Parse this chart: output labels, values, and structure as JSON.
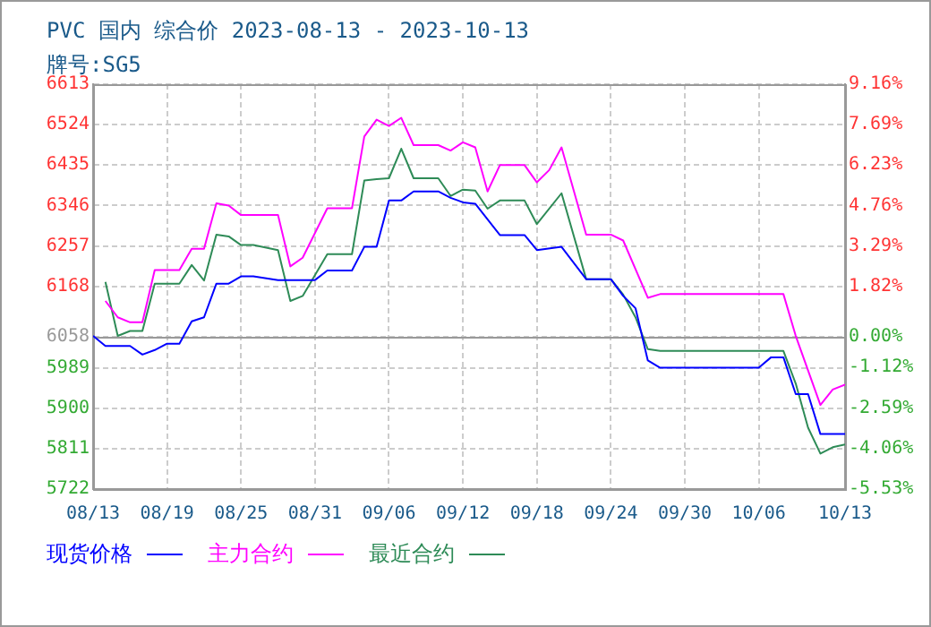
{
  "chart_data": {
    "type": "line",
    "title": "PVC 国内 综合价 2023-08-13 - 2023-10-13",
    "subtitle": "牌号:SG5",
    "xlim": [
      "2023-08-13",
      "2023-10-13"
    ],
    "xticks": [
      {
        "value": "2023-08-13",
        "label": "08/13"
      },
      {
        "value": "2023-08-19",
        "label": "08/19"
      },
      {
        "value": "2023-08-25",
        "label": "08/25"
      },
      {
        "value": "2023-08-31",
        "label": "08/31"
      },
      {
        "value": "2023-09-06",
        "label": "09/06"
      },
      {
        "value": "2023-09-12",
        "label": "09/12"
      },
      {
        "value": "2023-09-18",
        "label": "09/18"
      },
      {
        "value": "2023-09-24",
        "label": "09/24"
      },
      {
        "value": "2023-09-30",
        "label": "09/30"
      },
      {
        "value": "2023-10-06",
        "label": "10/06"
      },
      {
        "value": "2023-10-13",
        "label": "10/13"
      }
    ],
    "ylim": [
      5722,
      6613
    ],
    "yticks": [
      5722,
      5811,
      5900,
      5989,
      6058,
      6168,
      6257,
      6346,
      6435,
      6524,
      6613
    ],
    "y2lim": [
      -5.53,
      9.16
    ],
    "y2ticks": [
      {
        "value": -5.53,
        "label": "-5.53%"
      },
      {
        "value": -4.06,
        "label": "-4.06%"
      },
      {
        "value": -2.59,
        "label": "-2.59%"
      },
      {
        "value": -1.12,
        "label": "-1.12%"
      },
      {
        "value": 0,
        "label": "0.00%"
      },
      {
        "value": 1.82,
        "label": "1.82%"
      },
      {
        "value": 3.29,
        "label": "3.29%"
      },
      {
        "value": 4.76,
        "label": "4.76%"
      },
      {
        "value": 6.23,
        "label": "6.23%"
      },
      {
        "value": 7.69,
        "label": "7.69%"
      },
      {
        "value": 9.16,
        "label": "9.16%"
      }
    ],
    "ref_lines": [
      {
        "axis": "y",
        "value": 6058,
        "color": "#999999"
      }
    ],
    "grid": true,
    "legend": "bottom",
    "marker": "none",
    "line_style": "solid",
    "series": [
      {
        "name": "现货价格",
        "color": "#0000ff",
        "x": [
          "2023-08-13",
          "2023-08-14",
          "2023-08-16",
          "2023-08-17",
          "2023-08-18",
          "2023-08-19",
          "2023-08-20",
          "2023-08-21",
          "2023-08-22",
          "2023-08-23",
          "2023-08-24",
          "2023-08-25",
          "2023-08-26",
          "2023-08-28",
          "2023-08-31",
          "2023-09-01",
          "2023-09-03",
          "2023-09-04",
          "2023-09-05",
          "2023-09-06",
          "2023-09-07",
          "2023-09-08",
          "2023-09-10",
          "2023-09-11",
          "2023-09-12",
          "2023-09-13",
          "2023-09-15",
          "2023-09-17",
          "2023-09-18",
          "2023-09-20",
          "2023-09-22",
          "2023-09-24",
          "2023-09-25",
          "2023-09-26",
          "2023-09-27",
          "2023-09-28",
          "2023-10-06",
          "2023-10-07",
          "2023-10-08",
          "2023-10-09",
          "2023-10-10",
          "2023-10-11",
          "2023-10-13"
        ],
        "values": [
          6059,
          6037,
          6037,
          6018,
          6028,
          6042,
          6042,
          6091,
          6100,
          6174,
          6174,
          6190,
          6190,
          6182,
          6182,
          6203,
          6203,
          6255,
          6255,
          6357,
          6357,
          6377,
          6377,
          6363,
          6353,
          6350,
          6281,
          6281,
          6248,
          6255,
          6184,
          6184,
          6147,
          6120,
          6005,
          5989,
          5989,
          6012,
          6012,
          5931,
          5931,
          5843,
          5843
        ]
      },
      {
        "name": "主力合约",
        "color": "#ff00ff",
        "x": [
          "2023-08-14",
          "2023-08-15",
          "2023-08-16",
          "2023-08-17",
          "2023-08-18",
          "2023-08-20",
          "2023-08-21",
          "2023-08-22",
          "2023-08-23",
          "2023-08-24",
          "2023-08-25",
          "2023-08-28",
          "2023-08-29",
          "2023-08-30",
          "2023-09-01",
          "2023-09-03",
          "2023-09-04",
          "2023-09-05",
          "2023-09-06",
          "2023-09-07",
          "2023-09-08",
          "2023-09-10",
          "2023-09-11",
          "2023-09-12",
          "2023-09-13",
          "2023-09-14",
          "2023-09-15",
          "2023-09-17",
          "2023-09-18",
          "2023-09-19",
          "2023-09-20",
          "2023-09-22",
          "2023-09-24",
          "2023-09-25",
          "2023-09-27",
          "2023-09-28",
          "2023-10-08",
          "2023-10-09",
          "2023-10-11",
          "2023-10-12",
          "2023-10-13"
        ],
        "values": [
          6136,
          6100,
          6089,
          6089,
          6204,
          6204,
          6251,
          6251,
          6351,
          6346,
          6325,
          6325,
          6212,
          6231,
          6340,
          6340,
          6498,
          6535,
          6521,
          6539,
          6479,
          6479,
          6467,
          6485,
          6474,
          6377,
          6435,
          6435,
          6397,
          6424,
          6474,
          6282,
          6282,
          6269,
          6143,
          6151,
          6151,
          6059,
          5907,
          5941,
          5952
        ]
      },
      {
        "name": "最近合约",
        "color": "#2e8b57",
        "x": [
          "2023-08-14",
          "2023-08-15",
          "2023-08-16",
          "2023-08-17",
          "2023-08-18",
          "2023-08-20",
          "2023-08-21",
          "2023-08-22",
          "2023-08-23",
          "2023-08-24",
          "2023-08-25",
          "2023-08-26",
          "2023-08-28",
          "2023-08-29",
          "2023-08-30",
          "2023-09-01",
          "2023-09-03",
          "2023-09-04",
          "2023-09-05",
          "2023-09-06",
          "2023-09-07",
          "2023-09-08",
          "2023-09-10",
          "2023-09-11",
          "2023-09-12",
          "2023-09-13",
          "2023-09-14",
          "2023-09-15",
          "2023-09-17",
          "2023-09-18",
          "2023-09-20",
          "2023-09-22",
          "2023-09-24",
          "2023-09-25",
          "2023-09-26",
          "2023-09-27",
          "2023-09-28",
          "2023-10-08",
          "2023-10-09",
          "2023-10-10",
          "2023-10-11",
          "2023-10-12",
          "2023-10-13"
        ],
        "values": [
          6178,
          6059,
          6070,
          6070,
          6174,
          6174,
          6215,
          6181,
          6282,
          6278,
          6259,
          6259,
          6248,
          6136,
          6147,
          6239,
          6239,
          6401,
          6404,
          6406,
          6471,
          6406,
          6406,
          6367,
          6381,
          6379,
          6339,
          6357,
          6357,
          6305,
          6373,
          6184,
          6184,
          6150,
          6100,
          6030,
          6026,
          6026,
          5954,
          5857,
          5800,
          5814,
          5820
        ]
      }
    ]
  }
}
